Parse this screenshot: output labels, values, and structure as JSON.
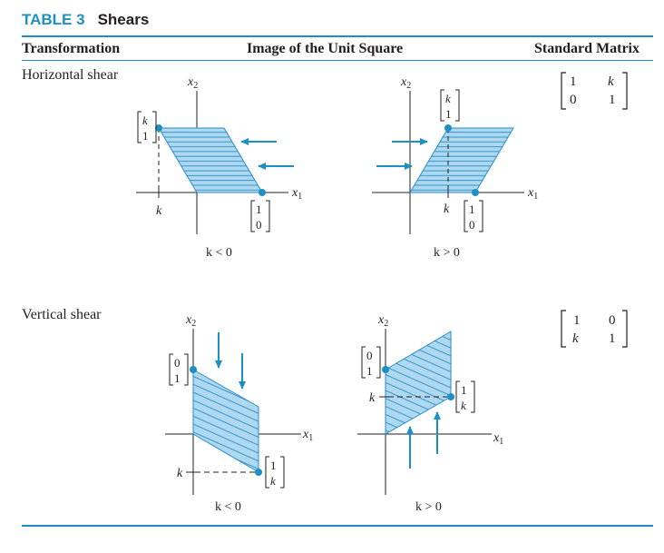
{
  "table": {
    "number": "TABLE 3",
    "title": "Shears",
    "headers": {
      "transformation": "Transformation",
      "image": "Image of the Unit Square",
      "matrix": "Standard Matrix"
    }
  },
  "rows": [
    {
      "label": "Horizontal shear",
      "captions": [
        "k < 0",
        "k > 0"
      ],
      "matrix": [
        [
          "1",
          "k"
        ],
        [
          "0",
          "1"
        ]
      ]
    },
    {
      "label": "Vertical shear",
      "captions": [
        "k < 0",
        "k > 0"
      ],
      "matrix": [
        [
          "1",
          "0"
        ],
        [
          "k",
          "1"
        ]
      ]
    }
  ],
  "axis": {
    "x": "x",
    "y": "x",
    "sub": "1",
    "sub2": "2",
    "k": "k"
  },
  "vectors": {
    "e1": [
      "1",
      "0"
    ],
    "e2": [
      "0",
      "1"
    ],
    "h": [
      "k",
      "1"
    ],
    "v": [
      "1",
      "k"
    ]
  },
  "colors": {
    "accent": "#1e8fc4",
    "fill": "#aed8f0",
    "hatch": "#2a8dc8",
    "ink": "#231f20"
  }
}
